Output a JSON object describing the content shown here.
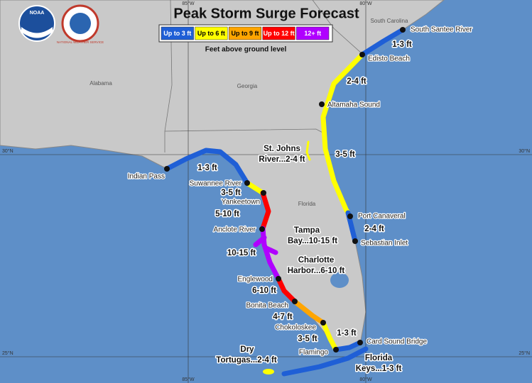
{
  "header": {
    "title": "Peak Storm Surge Forecast"
  },
  "logos": [
    "NOAA",
    "NATIONAL WEATHER SERVICE"
  ],
  "legend": {
    "items": [
      {
        "label": "Up to 3 ft",
        "color": "#1f5fd6"
      },
      {
        "label": "Up to 6 ft",
        "color": "#ffff00"
      },
      {
        "label": "Up to 9 ft",
        "color": "#ffa500"
      },
      {
        "label": "Up to 12 ft",
        "color": "#ff0000"
      },
      {
        "label": "12+ ft",
        "color": "#b000ff"
      }
    ],
    "note": "Feet above ground level"
  },
  "graticule": [
    "85°W",
    "80°W",
    "30°N",
    "25°N"
  ],
  "states": [
    "Alabama",
    "Georgia",
    "South Carolina",
    "Florida"
  ],
  "locations": [
    "South Santee River",
    "Edisto Beach",
    "Altamaha Sound",
    "Port Canaveral",
    "Sebastian Inlet",
    "Indian Pass",
    "Suwannee River",
    "Yankeetown",
    "Anclote River",
    "Englewood",
    "Bonita Beach",
    "Chokoloskee",
    "Flamingo",
    "Card Sound Bridge"
  ],
  "surge_labels": [
    [
      "1-3 ft"
    ],
    [
      "2-4 ft"
    ],
    [
      "3-5 ft"
    ],
    [
      "2-4 ft"
    ],
    [
      "1-3 ft"
    ],
    [
      "3-5 ft"
    ],
    [
      "5-10 ft"
    ],
    [
      "Tampa",
      "Bay...10-15 ft"
    ],
    [
      "10-15 ft"
    ],
    [
      "Charlotte",
      "Harbor...6-10 ft"
    ],
    [
      "6-10 ft"
    ],
    [
      "4-7 ft"
    ],
    [
      "3-5 ft"
    ],
    [
      "1-3 ft"
    ],
    [
      "Dry",
      "Tortugas...2-4 ft"
    ],
    [
      "Florida",
      "Keys...1-3 ft"
    ],
    [
      "St. Johns",
      "River...2-4 ft"
    ]
  ]
}
